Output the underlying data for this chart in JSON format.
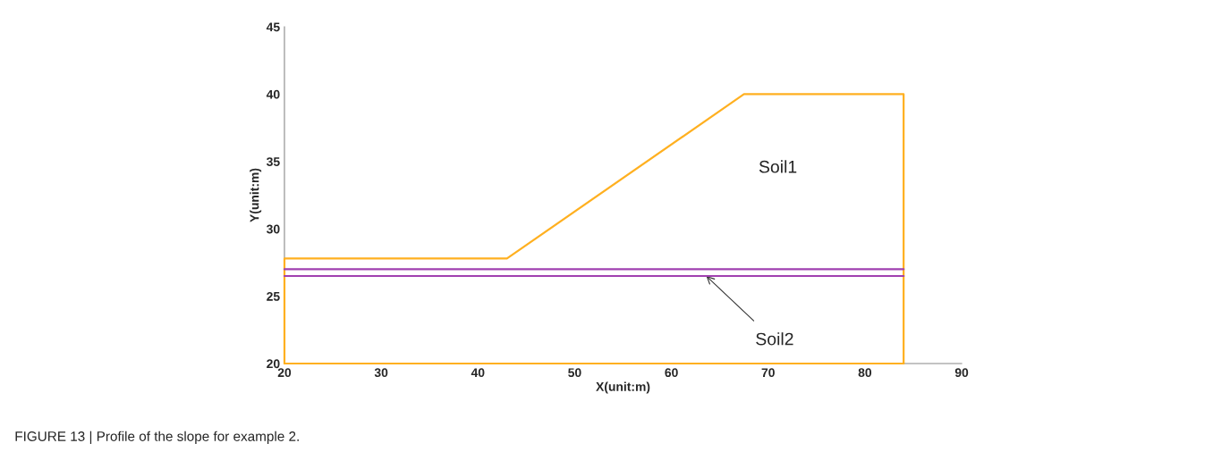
{
  "chart_data": {
    "type": "line",
    "xlabel": "X(unit:m)",
    "ylabel": "Y(unit:m)",
    "series": [
      {
        "color": "#ffb020",
        "x": [
          20,
          20,
          43,
          67.5,
          84,
          84
        ],
        "values": [
          20,
          27.8,
          27.8,
          40,
          40,
          20
        ]
      },
      {
        "color": "#ffb020",
        "x": [
          20,
          84
        ],
        "values": [
          20,
          20
        ]
      },
      {
        "color": "#a040b0",
        "x": [
          20,
          84
        ],
        "values": [
          26.5,
          26.5
        ]
      },
      {
        "color": "#a040b0",
        "x": [
          20,
          84
        ],
        "values": [
          27.0,
          27.0
        ]
      }
    ],
    "xlim": [
      20,
      90
    ],
    "xticks": [
      20,
      30,
      40,
      50,
      60,
      70,
      80,
      90
    ],
    "ylim": [
      20,
      45
    ],
    "yticks": [
      20,
      25,
      30,
      35,
      40,
      45
    ],
    "grid": false,
    "marker": "none",
    "line_style": "solid",
    "annotations": [
      "Soil1",
      {
        "text": "Soil2",
        "x": 63.6,
        "y": 26.5
      },
      "FIGURE 13 | Profile of the slope for example 2."
    ]
  }
}
